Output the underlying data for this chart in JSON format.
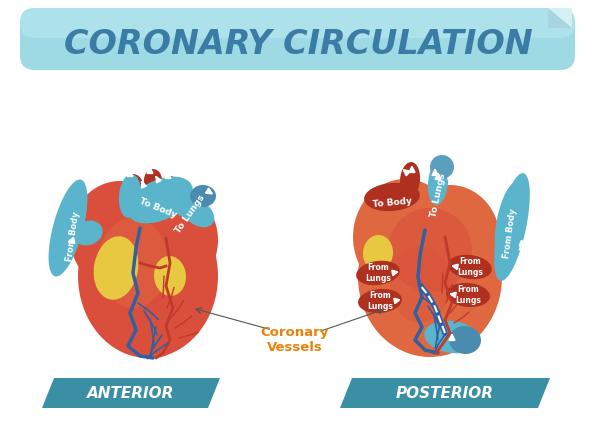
{
  "title": "CORONARY CIRCULATION",
  "title_color": "#3a7ca5",
  "title_banner_color": "#8dd4e0",
  "bg_color": "#ffffff",
  "anterior_label": "ANTERIOR",
  "posterior_label": "POSTERIOR",
  "label_bg_color": "#3a8fa5",
  "label_text_color": "#ffffff",
  "coronary_label": "Coronary\nVessels",
  "coronary_label_color": "#e8820a",
  "heart_main_color": "#d94f3c",
  "heart_dark_color": "#b03020",
  "heart_mid_color": "#c84030",
  "heart_light_color": "#e8705a",
  "heart_orange_color": "#e06840",
  "blue_vessel_color": "#5ab4cc",
  "dark_blue_color": "#4a8cb0",
  "blue_circle_color": "#5a9fbe",
  "yellow_area_color": "#e8c840",
  "red_vessel_color": "#c0392b",
  "dark_red_vessel": "#8b1a10",
  "blue_line_color": "#3060a0",
  "from_body_text": "From Body",
  "to_body_text": "To Body",
  "to_lungs_text": "To Lungs",
  "from_lungs_text": "From\nLungs"
}
